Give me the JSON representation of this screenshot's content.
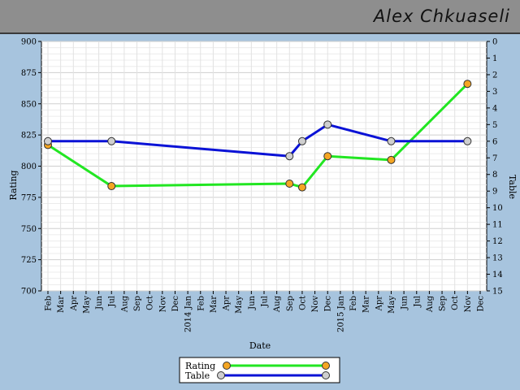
{
  "header": {
    "name": "Alex Chkuaseli",
    "background": "#8e8e8e"
  },
  "chart_data": {
    "type": "line",
    "xlabel": "Date",
    "ylabel": "Rating",
    "y2label": "Table",
    "ylim": [
      700,
      900
    ],
    "yticks": [
      700,
      725,
      750,
      775,
      800,
      825,
      850,
      875,
      900
    ],
    "y2lim": [
      0,
      15
    ],
    "y2ticks": [
      0,
      1,
      2,
      3,
      4,
      5,
      6,
      7,
      8,
      9,
      10,
      11,
      12,
      13,
      14,
      15
    ],
    "y2_inverted": true,
    "grid": true,
    "legend_position": "bottom-center",
    "xlim": [
      "2013-02",
      "2015-12"
    ],
    "x_tick_labels": [
      "Feb",
      "Mar",
      "Apr",
      "May",
      "Jun",
      "Jul",
      "Aug",
      "Sep",
      "Oct",
      "Nov",
      "Dec",
      "2014 Jan",
      "Feb",
      "Mar",
      "Apr",
      "May",
      "Jun",
      "Jul",
      "Aug",
      "Sep",
      "Oct",
      "Nov",
      "Dec",
      "2015 Jan",
      "Feb",
      "Mar",
      "Apr",
      "May",
      "Jun",
      "Jul",
      "Aug",
      "Sep",
      "Oct",
      "Nov",
      "Dec"
    ],
    "series": [
      {
        "name": "Rating",
        "axis": "left",
        "line_color": "#22e622",
        "marker_color": "#f5a623",
        "points": [
          {
            "x": "2013-02",
            "y": 817
          },
          {
            "x": "2013-07",
            "y": 784
          },
          {
            "x": "2014-09",
            "y": 786
          },
          {
            "x": "2014-10",
            "y": 783
          },
          {
            "x": "2014-12",
            "y": 808
          },
          {
            "x": "2015-05",
            "y": 805
          },
          {
            "x": "2015-11",
            "y": 866
          }
        ]
      },
      {
        "name": "Table",
        "axis": "right",
        "line_color": "#0a12d6",
        "marker_color": "#cfcfcf",
        "points": [
          {
            "x": "2013-02",
            "y": 6
          },
          {
            "x": "2013-07",
            "y": 6
          },
          {
            "x": "2014-09",
            "y": 6.9
          },
          {
            "x": "2014-10",
            "y": 6
          },
          {
            "x": "2014-12",
            "y": 5
          },
          {
            "x": "2015-05",
            "y": 6
          },
          {
            "x": "2015-11",
            "y": 6
          }
        ]
      }
    ]
  }
}
